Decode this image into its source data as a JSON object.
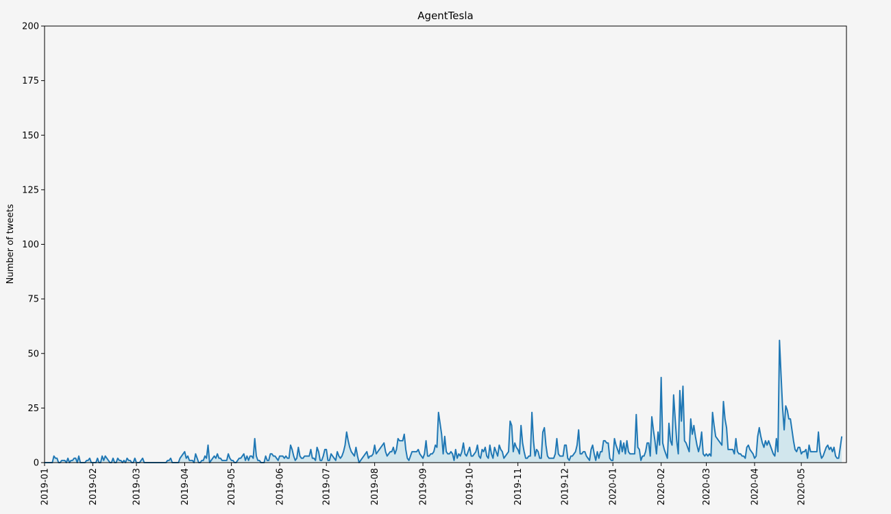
{
  "chart_data": {
    "type": "area-line",
    "title": "AgentTesla",
    "y_label": "Number of tweets",
    "line_color": "#1f77b4",
    "fill_color": "#add8e6",
    "background": "#f5f5f5",
    "grid": false,
    "xlim": [
      0,
      515
    ],
    "xticks": [
      {
        "value": 0,
        "label": "2019-01"
      },
      {
        "value": 31,
        "label": "2019-02"
      },
      {
        "value": 59,
        "label": "2019-03"
      },
      {
        "value": 90,
        "label": "2019-04"
      },
      {
        "value": 120,
        "label": "2019-05"
      },
      {
        "value": 151,
        "label": "2019-06"
      },
      {
        "value": 181,
        "label": "2019-07"
      },
      {
        "value": 212,
        "label": "2019-08"
      },
      {
        "value": 243,
        "label": "2019-09"
      },
      {
        "value": 273,
        "label": "2019-10"
      },
      {
        "value": 304,
        "label": "2019-11"
      },
      {
        "value": 334,
        "label": "2019-12"
      },
      {
        "value": 365,
        "label": "2020-01"
      },
      {
        "value": 396,
        "label": "2020-02"
      },
      {
        "value": 425,
        "label": "2020-03"
      },
      {
        "value": 456,
        "label": "2020-04"
      },
      {
        "value": 486,
        "label": "2020-05"
      }
    ],
    "ylim": [
      0,
      200
    ],
    "yticks": [
      0,
      25,
      50,
      75,
      100,
      125,
      150,
      175,
      200
    ],
    "values": [
      0,
      0,
      0,
      0,
      0,
      0,
      3,
      2,
      2,
      0,
      0,
      1,
      1,
      1,
      0,
      2,
      0,
      1,
      1,
      2,
      2,
      0,
      3,
      0,
      0,
      0,
      0,
      1,
      1,
      2,
      0,
      0,
      0,
      0,
      2,
      0,
      0,
      3,
      1,
      3,
      2,
      1,
      0,
      0,
      2,
      0,
      0,
      2,
      1,
      1,
      0,
      1,
      0,
      2,
      1,
      1,
      0,
      0,
      2,
      0,
      0,
      0,
      1,
      2,
      0,
      0,
      0,
      0,
      0,
      0,
      0,
      0,
      0,
      0,
      0,
      0,
      0,
      0,
      0,
      1,
      1,
      2,
      0,
      0,
      0,
      0,
      0,
      2,
      3,
      4,
      5,
      2,
      3,
      1,
      1,
      1,
      0,
      4,
      2,
      0,
      0,
      1,
      1,
      3,
      2,
      8,
      0,
      1,
      2,
      3,
      2,
      4,
      2,
      2,
      1,
      1,
      1,
      1,
      4,
      2,
      1,
      1,
      0,
      0,
      1,
      2,
      2,
      3,
      4,
      1,
      3,
      1,
      3,
      3,
      2,
      11,
      3,
      1,
      1,
      0,
      0,
      0,
      3,
      1,
      1,
      4,
      4,
      3,
      3,
      2,
      1,
      3,
      3,
      3,
      2,
      3,
      2,
      2,
      8,
      6,
      3,
      1,
      2,
      7,
      3,
      2,
      2,
      3,
      3,
      3,
      3,
      6,
      2,
      2,
      1,
      7,
      5,
      1,
      1,
      3,
      6,
      6,
      1,
      1,
      4,
      3,
      2,
      1,
      5,
      3,
      2,
      3,
      5,
      8,
      14,
      10,
      7,
      5,
      4,
      3,
      7,
      3,
      0,
      1,
      2,
      3,
      4,
      5,
      2,
      3,
      3,
      4,
      8,
      4,
      5,
      6,
      7,
      8,
      9,
      5,
      3,
      4,
      5,
      5,
      7,
      4,
      6,
      11,
      10,
      10,
      10,
      13,
      6,
      2,
      1,
      3,
      5,
      5,
      5,
      5,
      6,
      4,
      3,
      2,
      4,
      10,
      3,
      3,
      4,
      4,
      5,
      8,
      7,
      23,
      18,
      13,
      4,
      12,
      5,
      4,
      4,
      5,
      4,
      1,
      6,
      2,
      4,
      3,
      5,
      9,
      4,
      3,
      5,
      7,
      3,
      3,
      4,
      5,
      8,
      3,
      2,
      6,
      5,
      7,
      3,
      2,
      8,
      4,
      2,
      7,
      5,
      3,
      8,
      6,
      5,
      2,
      3,
      4,
      5,
      19,
      17,
      5,
      9,
      7,
      6,
      4,
      17,
      9,
      5,
      2,
      2,
      3,
      3,
      23,
      10,
      3,
      6,
      5,
      2,
      2,
      14,
      16,
      8,
      3,
      2,
      2,
      2,
      2,
      4,
      11,
      4,
      3,
      3,
      3,
      8,
      8,
      2,
      1,
      3,
      3,
      4,
      5,
      8,
      15,
      4,
      4,
      5,
      5,
      3,
      2,
      1,
      6,
      8,
      4,
      1,
      5,
      2,
      5,
      5,
      10,
      10,
      9,
      9,
      2,
      1,
      1,
      11,
      8,
      6,
      4,
      10,
      5,
      9,
      4,
      10,
      5,
      4,
      4,
      4,
      4,
      22,
      7,
      6,
      1,
      3,
      3,
      5,
      9,
      9,
      3,
      21,
      15,
      10,
      4,
      14,
      8,
      39,
      9,
      6,
      4,
      2,
      18,
      10,
      8,
      31,
      20,
      10,
      4,
      33,
      19,
      35,
      10,
      9,
      7,
      5,
      20,
      13,
      17,
      12,
      8,
      5,
      8,
      14,
      4,
      3,
      4,
      3,
      4,
      3,
      23,
      17,
      12,
      11,
      10,
      9,
      8,
      28,
      20,
      16,
      6,
      6,
      6,
      6,
      4,
      11,
      5,
      4,
      4,
      3,
      3,
      2,
      7,
      8,
      6,
      5,
      4,
      2,
      3,
      12,
      16,
      12,
      9,
      7,
      10,
      8,
      10,
      8,
      6,
      4,
      3,
      11,
      5,
      56,
      40,
      25,
      15,
      26,
      24,
      20,
      20,
      15,
      10,
      6,
      5,
      7,
      7,
      4,
      5,
      5,
      6,
      2,
      8,
      5,
      5,
      5,
      5,
      5,
      14,
      5,
      2,
      3,
      5,
      7,
      8,
      6,
      7,
      5,
      7,
      3,
      2,
      2,
      7,
      12
    ]
  }
}
